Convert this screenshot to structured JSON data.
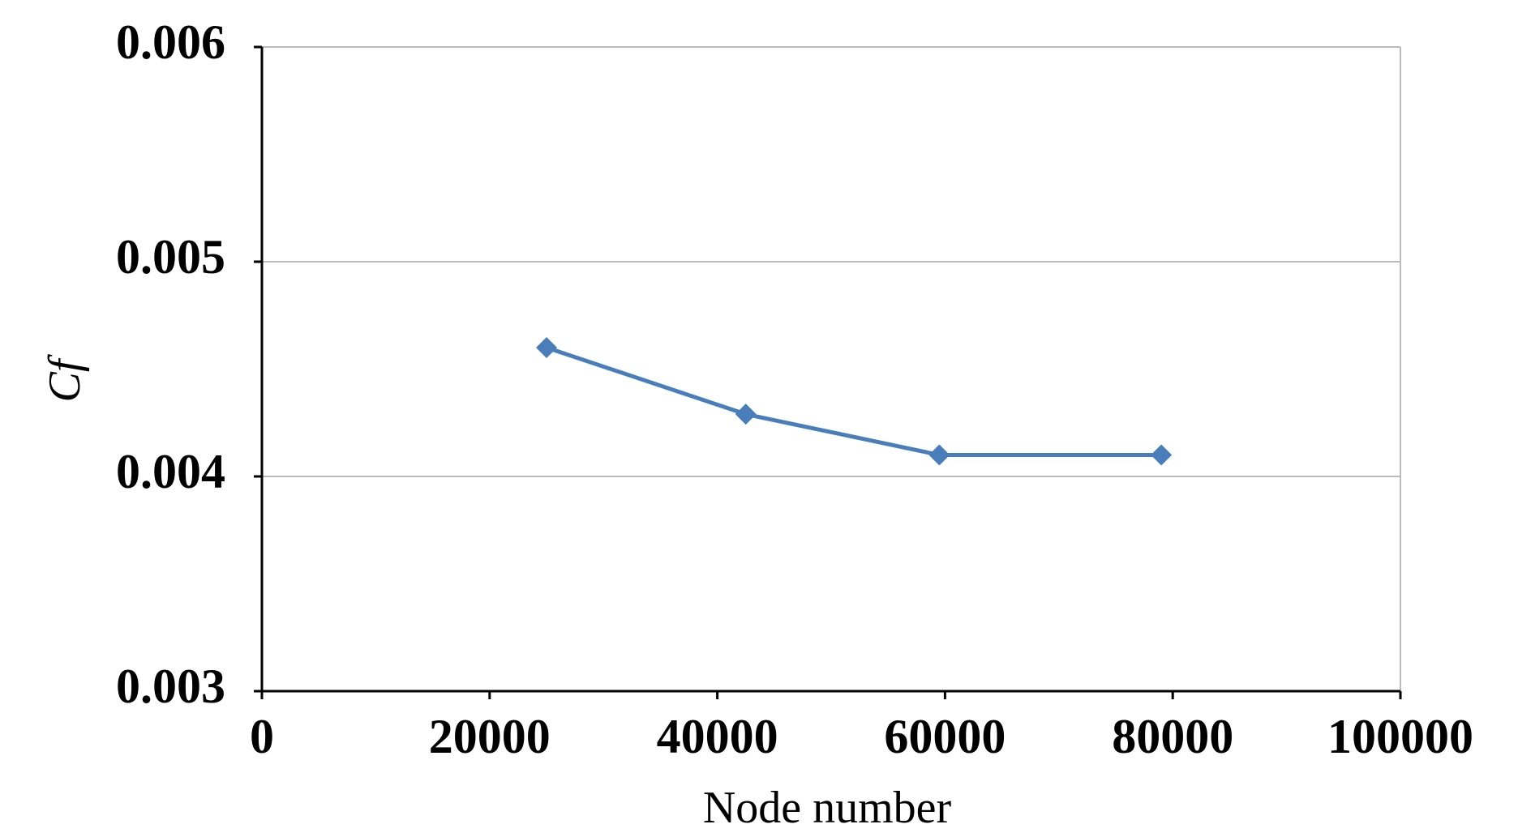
{
  "chart_data": {
    "type": "line",
    "x_label": "Node number",
    "y_label": "Cf",
    "x": [
      25000,
      42500,
      59500,
      79000
    ],
    "series": [
      {
        "values": [
          0.0046,
          0.00429,
          0.0041,
          0.0041
        ],
        "color": "#4a7ebb"
      }
    ],
    "xlim": [
      0,
      100000
    ],
    "xticks": [
      0,
      20000,
      40000,
      60000,
      80000,
      100000
    ],
    "ylim": [
      0.003,
      0.006
    ],
    "yticks": [
      0.003,
      0.004,
      0.005,
      0.006
    ],
    "grid": true
  }
}
